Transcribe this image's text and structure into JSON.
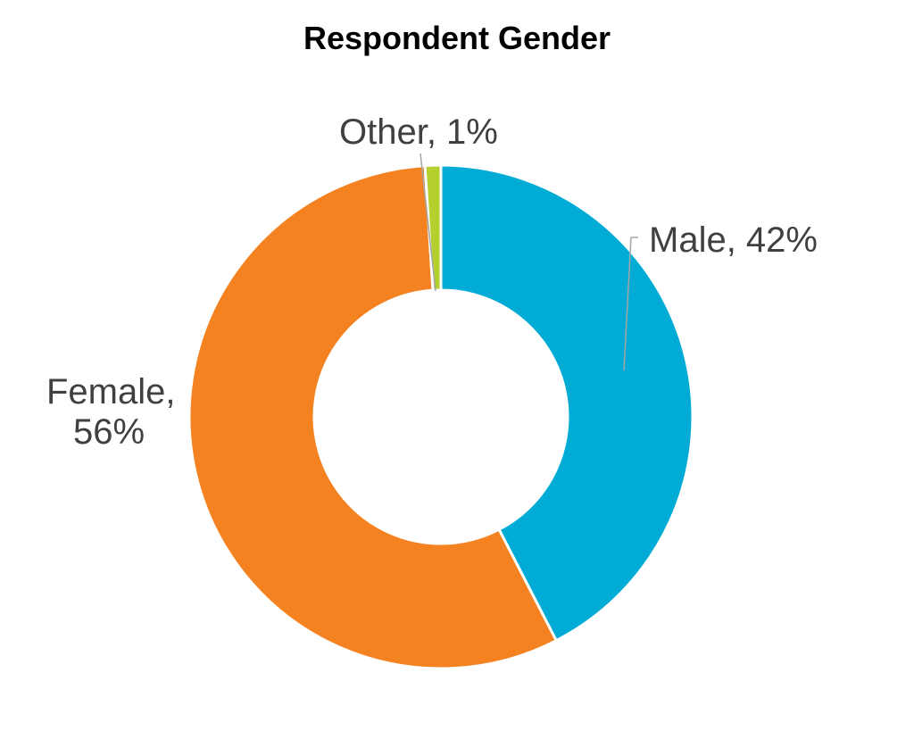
{
  "chart_data": {
    "type": "pie",
    "variant": "donut",
    "title": "Respondent Gender",
    "categories": [
      "Male",
      "Female",
      "Other"
    ],
    "values": [
      42,
      56,
      1
    ],
    "unit": "%",
    "labels": [
      "Male, 42%",
      "Female,",
      "56%",
      "Other, 1%"
    ],
    "colors": {
      "Male": "#00ACD6",
      "Female": "#F58220",
      "Other": "#B5CF2F"
    },
    "legend": "none",
    "start_angle": "12 o'clock",
    "direction": "clockwise"
  }
}
